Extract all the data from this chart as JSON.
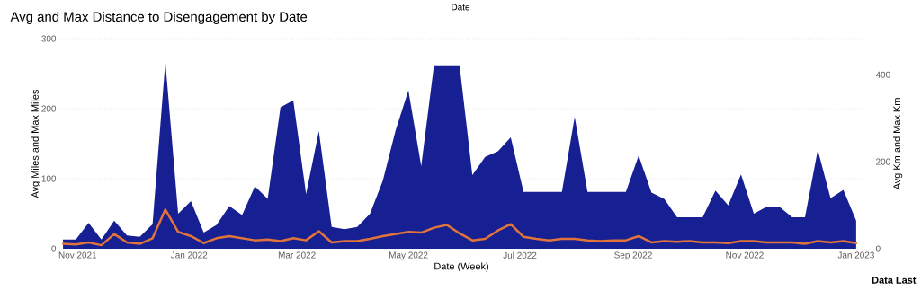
{
  "chart_data": {
    "type": "area",
    "title": "Avg and Max Distance to Disengagement by Date",
    "xlabel": "Date (Week)",
    "ylabel": "Avg Miles and Max Miles",
    "y2label": "Avg Km and Max Km",
    "annotations": [
      "Date",
      "Data Last"
    ],
    "x": [
      "2021-10-24",
      "2021-10-31",
      "2021-11-07",
      "2021-11-14",
      "2021-11-21",
      "2021-11-28",
      "2021-12-05",
      "2021-12-12",
      "2021-12-19",
      "2021-12-26",
      "2022-01-02",
      "2022-01-09",
      "2022-01-16",
      "2022-01-23",
      "2022-01-30",
      "2022-02-06",
      "2022-02-13",
      "2022-02-20",
      "2022-02-27",
      "2022-03-06",
      "2022-03-13",
      "2022-03-20",
      "2022-03-27",
      "2022-04-03",
      "2022-04-10",
      "2022-04-17",
      "2022-04-24",
      "2022-05-01",
      "2022-05-08",
      "2022-05-15",
      "2022-05-22",
      "2022-05-29",
      "2022-06-05",
      "2022-06-12",
      "2022-06-19",
      "2022-06-26",
      "2022-07-03",
      "2022-07-10",
      "2022-07-17",
      "2022-07-24",
      "2022-07-31",
      "2022-08-07",
      "2022-08-14",
      "2022-08-21",
      "2022-08-28",
      "2022-09-04",
      "2022-09-11",
      "2022-09-18",
      "2022-09-25",
      "2022-10-02",
      "2022-10-09",
      "2022-10-16",
      "2022-10-23",
      "2022-10-30",
      "2022-11-06",
      "2022-11-13",
      "2022-11-20",
      "2022-11-27",
      "2022-12-04",
      "2022-12-11",
      "2022-12-18",
      "2022-12-25",
      "2023-01-01"
    ],
    "series": [
      {
        "color": "#162093",
        "values": [
          13,
          13,
          37,
          13,
          40,
          19,
          17,
          35,
          267,
          50,
          68,
          23,
          34,
          61,
          48,
          89,
          71,
          202,
          212,
          78,
          168,
          31,
          28,
          31,
          50,
          97,
          169,
          226,
          118,
          262,
          262,
          262,
          105,
          131,
          139,
          159,
          81,
          81,
          81,
          81,
          188,
          81,
          81,
          81,
          81,
          133,
          80,
          71,
          45,
          45,
          45,
          83,
          62,
          106,
          50,
          60,
          60,
          45,
          45,
          141,
          72,
          84,
          40
        ]
      },
      {
        "type": "line",
        "color": "#e0743a",
        "values": [
          7,
          6,
          9,
          5,
          21,
          9,
          7,
          15,
          56,
          24,
          18,
          8,
          15,
          18,
          15,
          12,
          13,
          11,
          15,
          12,
          25,
          9,
          11,
          11,
          14,
          18,
          21,
          24,
          23,
          30,
          34,
          22,
          12,
          14,
          26,
          35,
          17,
          14,
          12,
          14,
          14,
          12,
          11,
          12,
          12,
          18,
          9,
          11,
          10,
          11,
          9,
          9,
          8,
          11,
          11,
          9,
          9,
          9,
          7,
          11,
          9,
          11,
          8
        ]
      }
    ],
    "xlim": [
      "2021-10-22",
      "2023-01-05"
    ],
    "xticks": [
      {
        "value": "2021-11-01",
        "label": "Nov 2021"
      },
      {
        "value": "2022-01-01",
        "label": "Jan 2022"
      },
      {
        "value": "2022-03-01",
        "label": "Mar 2022"
      },
      {
        "value": "2022-05-01",
        "label": "May 2022"
      },
      {
        "value": "2022-07-01",
        "label": "Jul 2022"
      },
      {
        "value": "2022-09-01",
        "label": "Sep 2022"
      },
      {
        "value": "2022-11-01",
        "label": "Nov 2022"
      },
      {
        "value": "2023-01-01",
        "label": "Jan 2023"
      }
    ],
    "ylim": [
      0,
      300
    ],
    "yticks": [
      0,
      100,
      200,
      300
    ],
    "y2lim": [
      0,
      483
    ],
    "y2ticks": [
      0,
      200,
      400
    ],
    "grid": "y"
  }
}
